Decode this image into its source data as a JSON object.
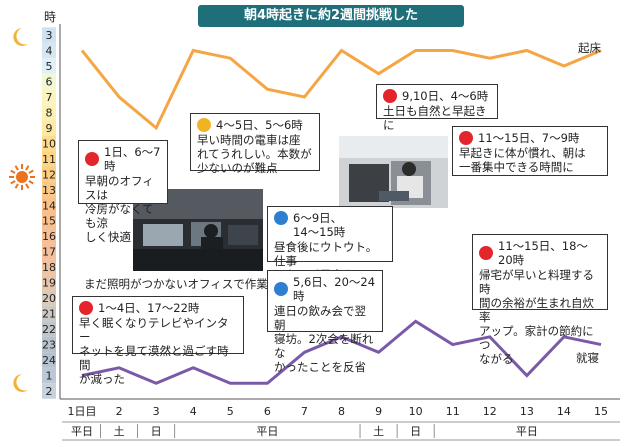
{
  "title": "朝4時起きに約2週間挑戦した",
  "y_unit": "時",
  "day_type_labels": [
    "平日",
    "土",
    "日",
    "平日",
    "土",
    "日",
    "平日"
  ],
  "photo_caption": "まだ照明がつかないオフィスで作業",
  "notes": [
    {
      "mood": "happy",
      "head": "1日、6〜7時",
      "body": "早朝のオフィスは\n冷房がなくても涼\nしく快適"
    },
    {
      "mood": "neutral",
      "head": "4〜5日、5〜6時",
      "body": "早い時間の電車は座\nれてうれしい。本数が\n少ないのが難点"
    },
    {
      "mood": "happy",
      "head": "9,10日、4〜6時",
      "body": "土日も自然と早起きに"
    },
    {
      "mood": "happy",
      "head": "11〜15日、7〜9時",
      "body": "早起きに体が慣れ、朝は\n一番集中できる時間に"
    },
    {
      "mood": "sad",
      "head": "6〜9日、\n14〜15時",
      "body": "昼食後にウトウト。仕事\nにならず昼寝をとる"
    },
    {
      "mood": "sad",
      "head": "5,6日、20〜24時",
      "body": "連日の飲み会で翌朝\n寝坊。2次会を断れな\nかったことを反省"
    },
    {
      "mood": "happy",
      "head": "11〜15日、18〜20時",
      "body": "帰宅が早いと料理する時\n間の余裕が生まれ自炊率\nアップ。家計の節約につ\nながる"
    },
    {
      "mood": "happy",
      "head": "1〜4日、17〜22時",
      "body": "早く眠くなりテレビやインター\nネットを見て漠然と過ごす時間\nが減った"
    }
  ],
  "colors": {
    "wake": "#f5a544",
    "sleep": "#7a5aa8",
    "title_bg": "#1f6f7a",
    "happy": "#e3262b",
    "neutral": "#f0b323",
    "sad": "#2f7fd0"
  },
  "chart_data": {
    "type": "line",
    "title": "朝4時起きに約2週間挑戦した",
    "ylabel": "時",
    "y_tick_labels": [
      "3",
      "4",
      "5",
      "6",
      "7",
      "8",
      "9",
      "10",
      "11",
      "12",
      "13",
      "14",
      "15",
      "16",
      "17",
      "18",
      "19",
      "20",
      "21",
      "22",
      "23",
      "24",
      "1",
      "2"
    ],
    "x_tick_labels": [
      "1日目",
      "2",
      "3",
      "4",
      "5",
      "6",
      "7",
      "8",
      "9",
      "10",
      "11",
      "12",
      "13",
      "14",
      "15"
    ],
    "x": [
      1,
      2,
      3,
      4,
      5,
      6,
      7,
      8,
      9,
      10,
      11,
      12,
      13,
      14,
      15
    ],
    "series": [
      {
        "name": "起床",
        "values": [
          4,
          7,
          9,
          4,
          4.5,
          6.5,
          7,
          4,
          5.5,
          4,
          4,
          4.5,
          4,
          5,
          4
        ]
      },
      {
        "name": "就寝",
        "values": [
          25,
          24.5,
          25.5,
          24.5,
          25.5,
          25.5,
          23.5,
          22.5,
          23.5,
          21.5,
          23,
          22.5,
          25,
          22.5,
          23
        ]
      }
    ],
    "ylim": [
      2.5,
      26.5
    ],
    "grid": false,
    "notes": "y values are clock hours; values above 24 mean after midnight (25 = 1時)"
  }
}
